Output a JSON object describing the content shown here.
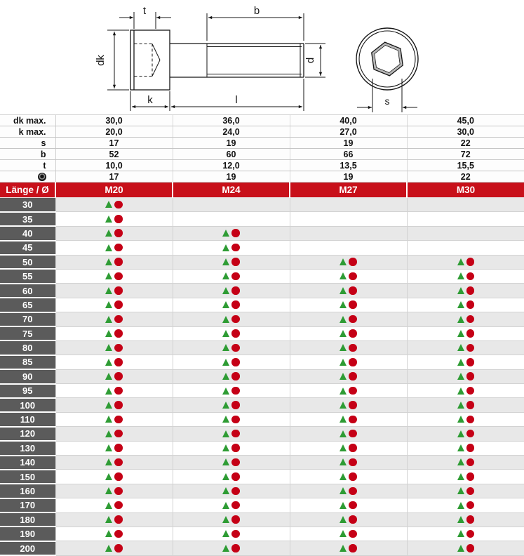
{
  "drawing": {
    "labels": {
      "t": "t",
      "b": "b",
      "dk": "dk",
      "d": "d",
      "k": "k",
      "l": "l",
      "s": "s"
    }
  },
  "spec_table": {
    "rows": [
      {
        "label": "dk max.",
        "values": [
          "30,0",
          "36,0",
          "40,0",
          "45,0"
        ]
      },
      {
        "label": "k max.",
        "values": [
          "20,0",
          "24,0",
          "27,0",
          "30,0"
        ]
      },
      {
        "label": "s",
        "values": [
          "17",
          "19",
          "19",
          "22"
        ]
      },
      {
        "label": "b",
        "values": [
          "52",
          "60",
          "66",
          "72"
        ]
      },
      {
        "label": "t",
        "values": [
          "10,0",
          "12,0",
          "13,5",
          "15,5"
        ]
      },
      {
        "icon": "fisheye-icon",
        "values": [
          "17",
          "19",
          "19",
          "22"
        ]
      }
    ]
  },
  "main_table": {
    "header": {
      "length_label": "Länge / Ø"
    },
    "columns": [
      "M20",
      "M24",
      "M27",
      "M30"
    ],
    "rows": [
      {
        "length": "30",
        "available": [
          true,
          false,
          false,
          false
        ]
      },
      {
        "length": "35",
        "available": [
          true,
          false,
          false,
          false
        ]
      },
      {
        "length": "40",
        "available": [
          true,
          true,
          false,
          false
        ]
      },
      {
        "length": "45",
        "available": [
          true,
          true,
          false,
          false
        ]
      },
      {
        "length": "50",
        "available": [
          true,
          true,
          true,
          true
        ]
      },
      {
        "length": "55",
        "available": [
          true,
          true,
          true,
          true
        ]
      },
      {
        "length": "60",
        "available": [
          true,
          true,
          true,
          true
        ]
      },
      {
        "length": "65",
        "available": [
          true,
          true,
          true,
          true
        ]
      },
      {
        "length": "70",
        "available": [
          true,
          true,
          true,
          true
        ]
      },
      {
        "length": "75",
        "available": [
          true,
          true,
          true,
          true
        ]
      },
      {
        "length": "80",
        "available": [
          true,
          true,
          true,
          true
        ]
      },
      {
        "length": "85",
        "available": [
          true,
          true,
          true,
          true
        ]
      },
      {
        "length": "90",
        "available": [
          true,
          true,
          true,
          true
        ]
      },
      {
        "length": "95",
        "available": [
          true,
          true,
          true,
          true
        ]
      },
      {
        "length": "100",
        "available": [
          true,
          true,
          true,
          true
        ]
      },
      {
        "length": "110",
        "available": [
          true,
          true,
          true,
          true
        ]
      },
      {
        "length": "120",
        "available": [
          true,
          true,
          true,
          true
        ]
      },
      {
        "length": "130",
        "available": [
          true,
          true,
          true,
          true
        ]
      },
      {
        "length": "140",
        "available": [
          true,
          true,
          true,
          true
        ]
      },
      {
        "length": "150",
        "available": [
          true,
          true,
          true,
          true
        ]
      },
      {
        "length": "160",
        "available": [
          true,
          true,
          true,
          true
        ]
      },
      {
        "length": "170",
        "available": [
          true,
          true,
          true,
          true
        ]
      },
      {
        "length": "180",
        "available": [
          true,
          true,
          true,
          true
        ]
      },
      {
        "length": "190",
        "available": [
          true,
          true,
          true,
          true
        ]
      },
      {
        "length": "200",
        "available": [
          true,
          true,
          true,
          true
        ]
      }
    ]
  },
  "colors": {
    "header_red": "#c8101a",
    "triangle_green": "#2e9c34",
    "circle_red": "#c50016",
    "row_label_gray": "#5b5b5b",
    "row_alt_gray": "#e8e8e8"
  }
}
